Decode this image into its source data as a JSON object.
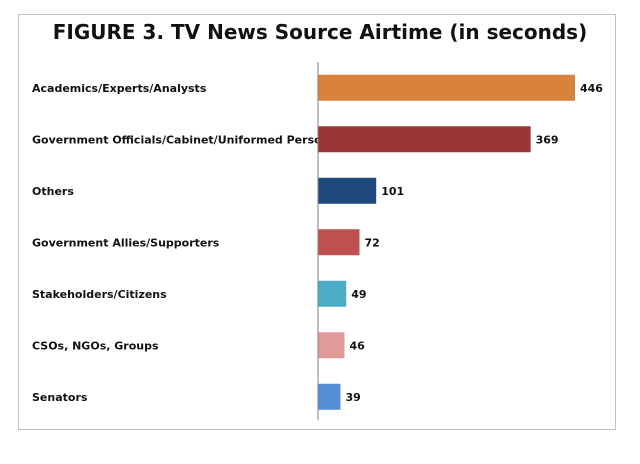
{
  "chart_data": {
    "type": "bar",
    "orientation": "horizontal",
    "title": "FIGURE 3. TV News Source Airtime (in seconds)",
    "categories": [
      "Academics/Experts/Analysts",
      "Government Officials/Cabinet/Uniformed Persons",
      "Others",
      "Government Allies/Supporters",
      "Stakeholders/Citizens",
      "CSOs, NGOs, Groups",
      "Senators"
    ],
    "values": [
      446,
      369,
      101,
      72,
      49,
      46,
      39
    ],
    "value_labels": [
      "446",
      "369",
      "101",
      "72",
      "49",
      "46",
      "39"
    ],
    "colors": [
      "#D9823B",
      "#9B3535",
      "#1F497D",
      "#C0504D",
      "#4BACC6",
      "#E09A98",
      "#558ED5"
    ],
    "xlim": [
      0,
      446
    ],
    "grid": false,
    "legend": "none"
  }
}
